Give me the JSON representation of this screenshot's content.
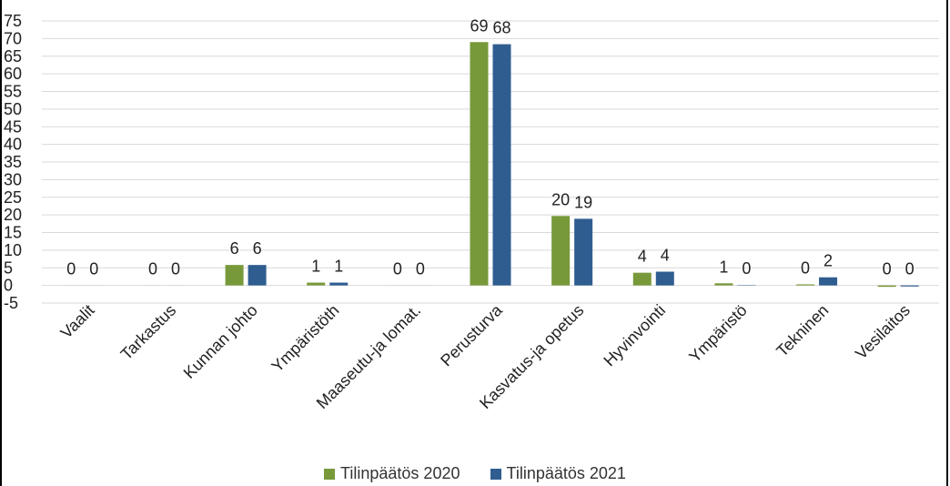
{
  "chart_data": {
    "type": "bar",
    "categories": [
      "Vaalit",
      "Tarkastus",
      "Kunnan johto",
      "Ympäristöth",
      "Maaseutu-ja lomat.",
      "Perusturva",
      "Kasvatus-ja opetus",
      "Hyvinvointi",
      "Ympäristö",
      "Tekninen",
      "Vesilaitos"
    ],
    "series": [
      {
        "name": "Tilinpäätös 2020",
        "color": "#77993a",
        "values": [
          0,
          0,
          5.8,
          0.8,
          0,
          69,
          19.7,
          3.6,
          0.6,
          0.3,
          -0.4
        ],
        "labels": [
          "0",
          "0",
          "6",
          "1",
          "0",
          "69",
          "20",
          "4",
          "1",
          "0",
          "0"
        ]
      },
      {
        "name": "Tilinpäätös 2021",
        "color": "#2f5d90",
        "values": [
          0,
          0,
          5.8,
          0.8,
          0,
          68.4,
          18.9,
          3.9,
          0.1,
          2.3,
          -0.3
        ],
        "labels": [
          "0",
          "0",
          "6",
          "1",
          "0",
          "68",
          "19",
          "4",
          "0",
          "2",
          "0"
        ]
      }
    ],
    "ylim": [
      -5,
      75
    ],
    "yticks": [
      "-5",
      "0",
      "5",
      "10",
      "15",
      "20",
      "25",
      "30",
      "35",
      "40",
      "45",
      "50",
      "55",
      "60",
      "65",
      "70",
      "75"
    ],
    "grid": true,
    "legend_position": "bottom"
  }
}
